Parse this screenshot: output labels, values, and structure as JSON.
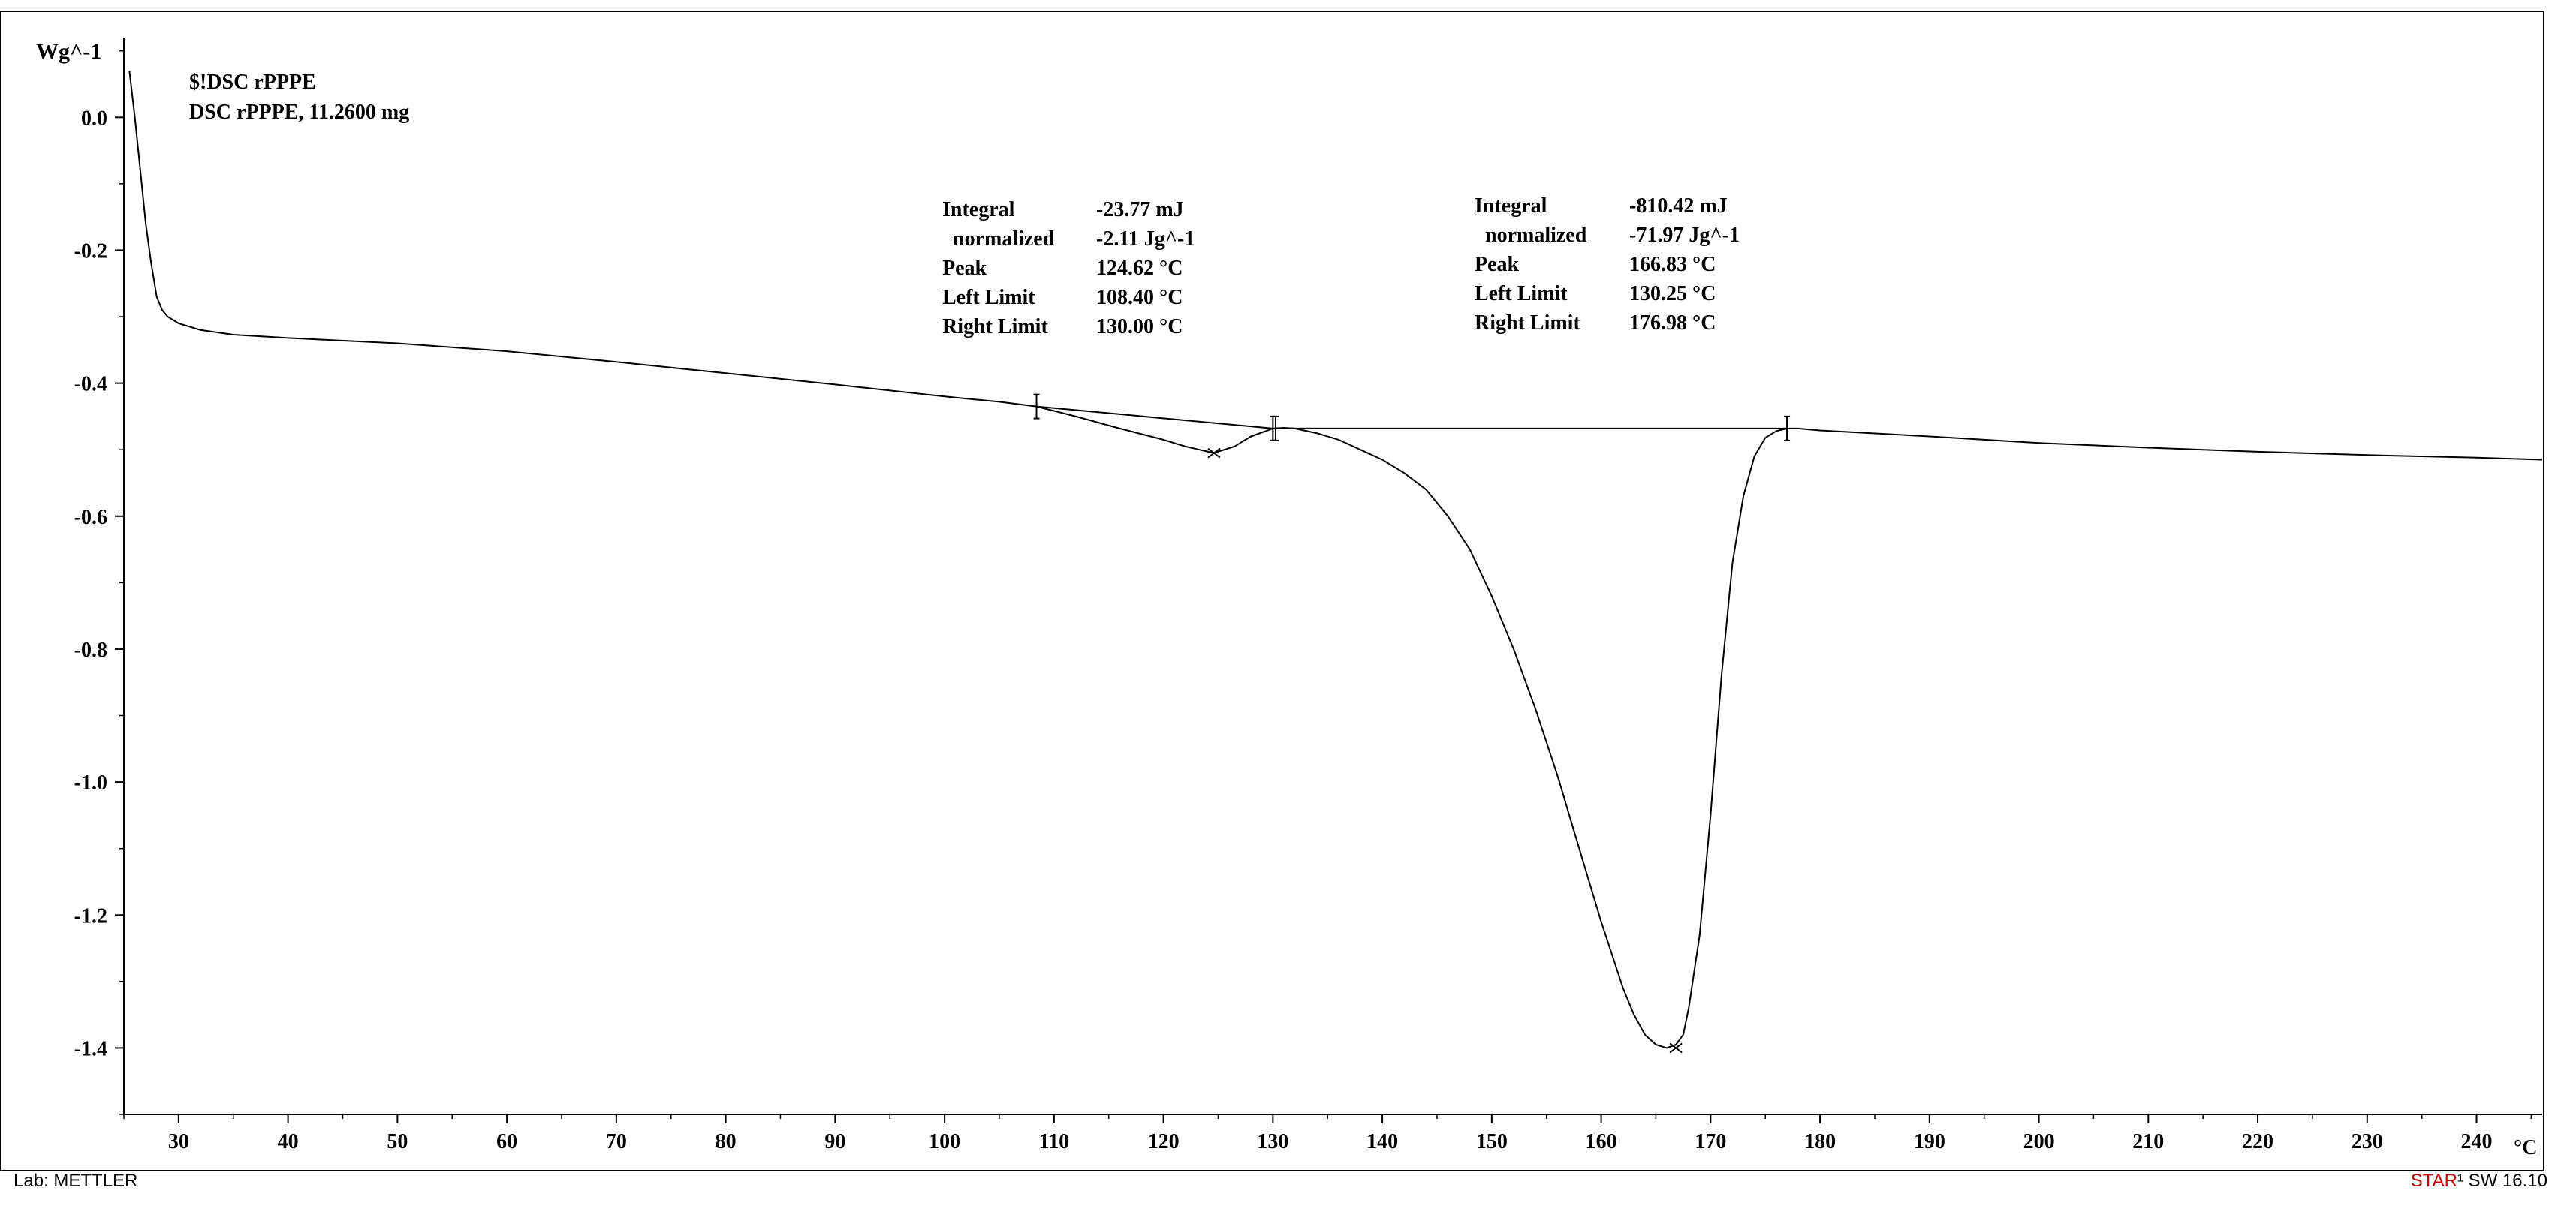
{
  "header": {
    "title_line1": "$!DSC  rPPPE",
    "title_line2": "DSC rPPPE, 11.2600 mg"
  },
  "footer": {
    "lab_label": "Lab: METTLER",
    "software_prefix": "STAR",
    "software_suffix": "¹ SW 16.10"
  },
  "colors": {
    "star_red": "#cc0000",
    "curve": "#000000",
    "background": "#ffffff"
  },
  "annotations": [
    {
      "rows": [
        {
          "label": "Integral",
          "value": "-23.77 mJ"
        },
        {
          "label": "  normalized",
          "value": "-2.11 Jg^-1"
        },
        {
          "label": "Peak",
          "value": "124.62 °C"
        },
        {
          "label": "Left Limit",
          "value": "108.40 °C"
        },
        {
          "label": "Right Limit",
          "value": "130.00 °C"
        }
      ]
    },
    {
      "rows": [
        {
          "label": "Integral",
          "value": "-810.42 mJ"
        },
        {
          "label": "  normalized",
          "value": "-71.97 Jg^-1"
        },
        {
          "label": "Peak",
          "value": "166.83 °C"
        },
        {
          "label": "Left Limit",
          "value": "130.25 °C"
        },
        {
          "label": "Right Limit",
          "value": "176.98 °C"
        }
      ]
    }
  ],
  "chart_data": {
    "type": "line",
    "ylabel": "Wg^-1",
    "xlabel": "°C",
    "xlim": [
      25,
      246
    ],
    "ylim": [
      -1.5,
      0.12
    ],
    "x_ticks": [
      30,
      40,
      50,
      60,
      70,
      80,
      90,
      100,
      110,
      120,
      130,
      140,
      150,
      160,
      170,
      180,
      190,
      200,
      210,
      220,
      230,
      240
    ],
    "x_tick_labels": [
      "30",
      "40",
      "50",
      "60",
      "70",
      "80",
      "90",
      "100",
      "110",
      "120",
      "130",
      "140",
      "150",
      "160",
      "170",
      "180",
      "190",
      "200",
      "210",
      "220",
      "230",
      "240"
    ],
    "y_ticks": [
      0.0,
      -0.2,
      -0.4,
      -0.6,
      -0.8,
      -1.0,
      -1.2,
      -1.4
    ],
    "y_tick_labels": [
      "0.0",
      "-0.2",
      "-0.4",
      "-0.6",
      "-0.8",
      "-1.0",
      "-1.2",
      "-1.4"
    ],
    "grid": false,
    "series": [
      {
        "x": [
          25.5,
          26,
          26.5,
          27,
          27.5,
          28,
          28.5,
          29,
          30,
          32,
          35,
          40,
          50,
          60,
          70,
          80,
          90,
          100,
          105,
          108.4,
          112,
          116,
          120,
          122,
          124.62,
          126.5,
          128,
          130,
          131,
          132,
          134,
          136,
          138,
          140,
          142,
          144,
          146,
          148,
          150,
          152,
          154,
          156,
          158,
          160,
          161,
          162,
          163,
          164,
          165,
          166,
          166.83,
          167.5,
          168,
          169,
          170,
          171,
          172,
          173,
          174,
          175,
          176,
          176.98,
          178,
          180,
          190,
          200,
          210,
          220,
          230,
          240,
          246
        ],
        "y": [
          0.07,
          0.0,
          -0.08,
          -0.16,
          -0.22,
          -0.27,
          -0.29,
          -0.3,
          -0.31,
          -0.32,
          -0.327,
          -0.332,
          -0.34,
          -0.352,
          -0.368,
          -0.385,
          -0.402,
          -0.42,
          -0.428,
          -0.435,
          -0.45,
          -0.468,
          -0.485,
          -0.495,
          -0.505,
          -0.495,
          -0.48,
          -0.468,
          -0.467,
          -0.468,
          -0.475,
          -0.485,
          -0.5,
          -0.515,
          -0.535,
          -0.56,
          -0.6,
          -0.65,
          -0.72,
          -0.8,
          -0.89,
          -0.99,
          -1.1,
          -1.21,
          -1.26,
          -1.31,
          -1.35,
          -1.38,
          -1.395,
          -1.4,
          -1.395,
          -1.38,
          -1.34,
          -1.23,
          -1.05,
          -0.84,
          -0.67,
          -0.57,
          -0.51,
          -0.482,
          -0.472,
          -0.468,
          -0.468,
          -0.471,
          -0.48,
          -0.49,
          -0.497,
          -0.503,
          -0.508,
          -0.512,
          -0.515
        ]
      }
    ],
    "baselines": [
      {
        "x": [
          108.4,
          130.0
        ],
        "y": [
          -0.435,
          -0.468
        ]
      },
      {
        "x": [
          130.25,
          176.98
        ],
        "y": [
          -0.468,
          -0.468
        ]
      }
    ],
    "markers": [
      {
        "x": 108.4,
        "y": -0.435,
        "kind": "limit"
      },
      {
        "x": 130.0,
        "y": -0.468,
        "kind": "limit"
      },
      {
        "x": 130.25,
        "y": -0.468,
        "kind": "limit"
      },
      {
        "x": 176.98,
        "y": -0.468,
        "kind": "limit"
      },
      {
        "x": 124.62,
        "y": -0.505,
        "kind": "peak"
      },
      {
        "x": 166.83,
        "y": -1.4,
        "kind": "peak"
      }
    ]
  }
}
